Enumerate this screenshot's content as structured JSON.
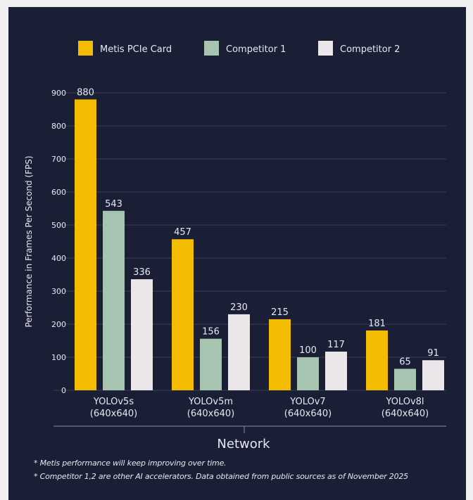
{
  "chart_data": {
    "type": "bar",
    "categories": [
      "YOLOv5s\n(640x640)",
      "YOLOv5m\n(640x640)",
      "YOLOv7\n(640x640)",
      "YOLOv8l\n(640x640)"
    ],
    "series": [
      {
        "name": "Metis PCIe Card",
        "values": [
          880,
          457,
          215,
          181
        ],
        "color": "#f3bc00"
      },
      {
        "name": "Competitor 1",
        "values": [
          543,
          156,
          100,
          65
        ],
        "color": "#a7c4b1"
      },
      {
        "name": "Competitor 2",
        "values": [
          336,
          230,
          117,
          91
        ],
        "color": "#eae6ea"
      }
    ],
    "xlabel": "Network",
    "ylabel": "Performance in Frames Per Second (FPS)",
    "ylim": [
      0,
      900
    ],
    "yticks": [
      0,
      100,
      200,
      300,
      400,
      500,
      600,
      700,
      800,
      900
    ],
    "grid": true,
    "legend_position": "top"
  },
  "footnotes": {
    "note1": "* Metis performance will keep improving over time.",
    "note2": "* Competitor 1,2 are other AI accelerators. Data obtained from public sources as of November 2025"
  },
  "colors": {
    "background": "#1b1f36",
    "gridline": "#3a3f58",
    "text": "#e6e7ee"
  }
}
